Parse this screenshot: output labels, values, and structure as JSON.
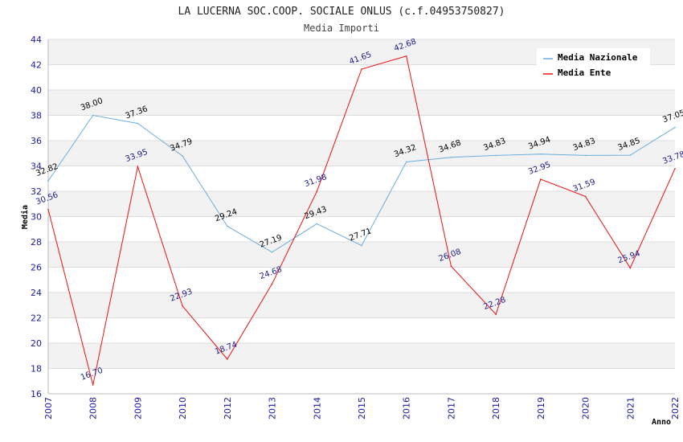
{
  "chart_data": {
    "type": "line",
    "title": "LA LUCERNA SOC.COOP. SOCIALE ONLUS (c.f.04953750827)",
    "subtitle": "Media Importi",
    "xlabel": "Anno",
    "ylabel": "Media",
    "ylim": [
      16,
      44
    ],
    "ytick_step": 2,
    "grid": true,
    "legend_position": "top-right",
    "categories": [
      "2007",
      "2008",
      "2009",
      "2010",
      "2012",
      "2013",
      "2014",
      "2015",
      "2016",
      "2017",
      "2018",
      "2019",
      "2020",
      "2021",
      "2022"
    ],
    "series": [
      {
        "name": "Media Nazionale",
        "color": "#6aaee0",
        "label_color": "#000000",
        "values": [
          32.82,
          38.0,
          37.36,
          34.79,
          29.24,
          27.19,
          29.43,
          27.71,
          34.32,
          34.68,
          34.83,
          34.94,
          34.83,
          34.85,
          37.05
        ],
        "labels": [
          "32.82",
          "38.00",
          "37.36",
          "34.79",
          "29.24",
          "27.19",
          "29.43",
          "27.71",
          "34.32",
          "34.68",
          "34.83",
          "34.94",
          "34.83",
          "34.85",
          "37.05"
        ]
      },
      {
        "name": "Media Ente",
        "color": "#ee1111",
        "label_color": "#1a1a8c",
        "values": [
          30.56,
          16.7,
          33.95,
          22.93,
          18.74,
          24.68,
          31.98,
          41.65,
          42.68,
          26.08,
          22.28,
          32.95,
          31.59,
          25.94,
          33.78
        ],
        "labels": [
          "30.56",
          "16.70",
          "33.95",
          "22.93",
          "18.74",
          "24.68",
          "31.98",
          "41.65",
          "42.68",
          "26.08",
          "22.28",
          "32.95",
          "31.59",
          "25.94",
          "33.78"
        ]
      }
    ]
  }
}
